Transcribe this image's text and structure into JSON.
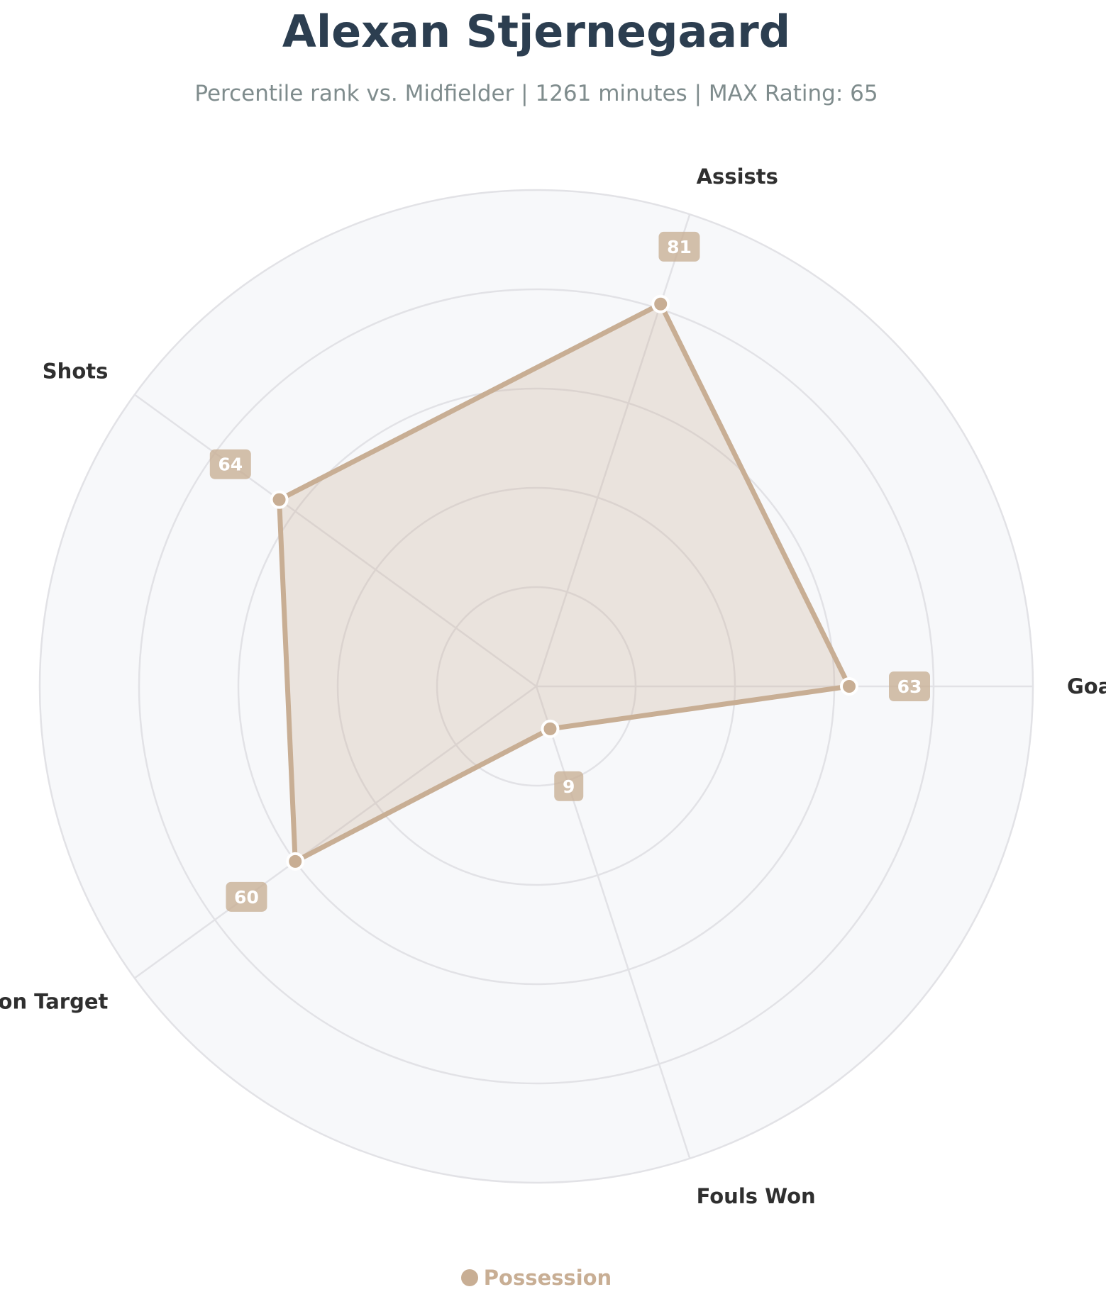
{
  "chart_data": {
    "type": "radar",
    "title": "Alexan Stjernegaard",
    "subtitle": "Percentile rank vs. Midfielder | 1261 minutes | MAX Rating: 65",
    "axes": [
      "Goals",
      "Assists",
      "Shots",
      "Shots on Target",
      "Fouls Won"
    ],
    "series": [
      {
        "name": "Possession",
        "values": [
          63,
          81,
          64,
          60,
          9
        ]
      }
    ],
    "rlim": [
      0,
      100
    ],
    "rings": [
      20,
      40,
      60,
      80,
      100
    ],
    "grid": true,
    "legend": "bottom",
    "colors": {
      "series": "#c8ae94",
      "fill": "#ebe6df",
      "background": "#f7f8fa",
      "grid": "#e2e2e6",
      "title": "#2c3e50",
      "subtitle": "#7f8c8d",
      "label": "#2f2f2f"
    }
  }
}
